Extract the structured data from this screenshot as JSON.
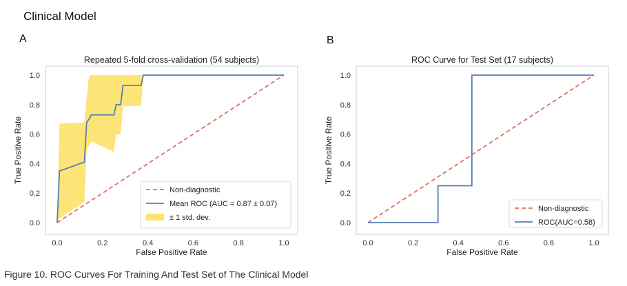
{
  "page": {
    "heading": "Clinical Model",
    "panel_a": "A",
    "panel_b": "B",
    "caption": "Figure 10. ROC Curves For Training And Test Set of The Clinical Model"
  },
  "colors": {
    "roc_line": "#5a7db5",
    "diagonal": "#d9706c",
    "band": "#fde36f",
    "frame": "#cfcfcf"
  },
  "chart_data": [
    {
      "type": "line",
      "title": "Repeated 5-fold cross-validation (54 subjects)",
      "xlabel": "False Positive Rate",
      "ylabel": "True Positive Rate",
      "xlim": [
        0,
        1
      ],
      "ylim": [
        0,
        1
      ],
      "ticks": [
        "0.0",
        "0.2",
        "0.4",
        "0.6",
        "0.8",
        "1.0"
      ],
      "grid": false,
      "legend_position": "lower-right",
      "series": [
        {
          "name": "Non-diagnostic",
          "style": "dashed",
          "x": [
            0,
            1
          ],
          "y": [
            0,
            1
          ]
        },
        {
          "name": "Mean ROC (AUC = 0.87 ± 0.07)",
          "style": "solid",
          "x": [
            0,
            0.01,
            0.12,
            0.13,
            0.14,
            0.15,
            0.25,
            0.26,
            0.28,
            0.29,
            0.37,
            0.38,
            1.0
          ],
          "y": [
            0,
            0.35,
            0.41,
            0.68,
            0.7,
            0.73,
            0.73,
            0.8,
            0.8,
            0.93,
            0.93,
            1.0,
            1.0
          ]
        }
      ],
      "band": {
        "name": "± 1 std. dev.",
        "x": [
          0,
          0.01,
          0.12,
          0.13,
          0.14,
          0.15,
          0.25,
          0.26,
          0.28,
          0.29,
          0.37,
          0.38,
          1.0
        ],
        "upper": [
          0.0,
          0.67,
          0.68,
          0.85,
          0.99,
          1.0,
          1.0,
          1.0,
          1.0,
          1.0,
          1.0,
          1.0,
          1.0
        ],
        "lower": [
          0.0,
          0.03,
          0.14,
          0.5,
          0.52,
          0.55,
          0.48,
          0.6,
          0.6,
          0.79,
          0.79,
          1.0,
          1.0
        ]
      }
    },
    {
      "type": "line",
      "title": "ROC Curve for Test Set (17 subjects)",
      "xlabel": "False Positive Rate",
      "ylabel": "True Positive Rate",
      "xlim": [
        0,
        1
      ],
      "ylim": [
        0,
        1
      ],
      "ticks": [
        "0.0",
        "0.2",
        "0.4",
        "0.6",
        "0.8",
        "1.0"
      ],
      "grid": false,
      "legend_position": "lower-right",
      "series": [
        {
          "name": "Non-diagnostic",
          "style": "dashed",
          "x": [
            0,
            1
          ],
          "y": [
            0,
            1
          ]
        },
        {
          "name": "ROC(AUC=0.58)",
          "style": "solid",
          "x": [
            0,
            0.31,
            0.31,
            0.46,
            0.46,
            1.0
          ],
          "y": [
            0,
            0,
            0.25,
            0.25,
            1.0,
            1.0
          ]
        }
      ]
    }
  ]
}
